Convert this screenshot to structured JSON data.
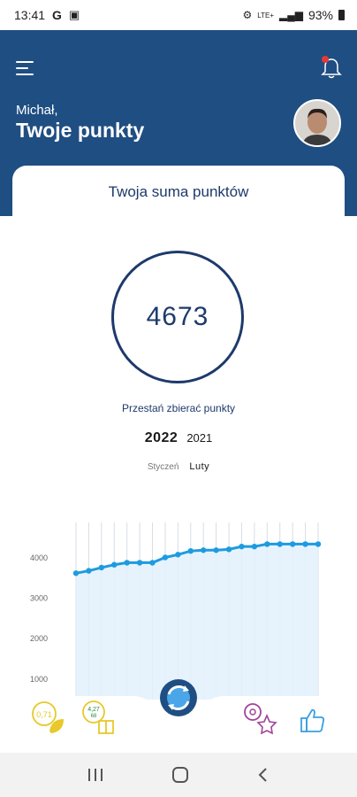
{
  "status": {
    "time": "13:41",
    "battery": "93%",
    "network": "LTE+"
  },
  "header": {
    "greeting": "Michał,",
    "title": "Twoje punkty"
  },
  "card": {
    "title": "Twoja suma punktów"
  },
  "points": {
    "value": "4673"
  },
  "stop_label": "Przestań zbierać punkty",
  "years": [
    "2022",
    "2021"
  ],
  "months": [
    "Styczeń",
    "Luty"
  ],
  "colors": {
    "header_bg": "#1f4e82",
    "accent_line": "#1e9be0",
    "text_dark": "#1d3a6b",
    "badge_yellow": "#e8c82a",
    "badge_pink": "#a0449a",
    "like_blue": "#3aa0e0"
  },
  "bottom_nav": {
    "badge1_text": "0,71",
    "badge2_text": "4,27",
    "badge2_text_b": "68"
  },
  "chart_data": {
    "type": "line",
    "x": [
      1,
      2,
      3,
      4,
      5,
      6,
      7,
      8,
      9,
      10,
      11,
      12,
      13,
      14,
      15,
      16,
      17,
      18,
      19,
      20
    ],
    "values": [
      3620,
      3680,
      3760,
      3830,
      3880,
      3880,
      3880,
      4010,
      4080,
      4170,
      4190,
      4190,
      4210,
      4280,
      4280,
      4340,
      4340,
      4340,
      4340,
      4340
    ],
    "yticks": [
      "1000",
      "2000",
      "3000",
      "4000"
    ],
    "ylim": [
      800,
      4700
    ],
    "grid": true
  }
}
